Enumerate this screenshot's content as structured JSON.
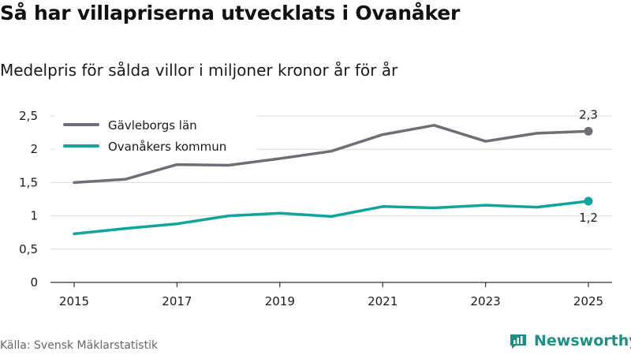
{
  "title": "Så har villapriserna utvecklats i Ovanåker",
  "subtitle": "Medelpris för sålda villor i miljoner kronor år för år",
  "source": "Källa: Svensk Mäklarstatistik",
  "brand": "Newsworthy",
  "colors": {
    "gavleborg": "#6f6e74",
    "ovanaker": "#0fa59a",
    "grid": "#d9d9d9",
    "axis": "#333333",
    "brand": "#1f8f84"
  },
  "chart_data": {
    "type": "line",
    "title": "Så har villapriserna utvecklats i Ovanåker",
    "subtitle": "Medelpris för sålda villor i miljoner kronor år för år",
    "x": [
      2015,
      2016,
      2017,
      2018,
      2019,
      2020,
      2021,
      2022,
      2023,
      2024,
      2025
    ],
    "x_ticks": [
      2015,
      2017,
      2019,
      2021,
      2023,
      2025
    ],
    "x_tick_labels": [
      "2015",
      "2017",
      "2019",
      "2021",
      "2023",
      "2025"
    ],
    "xlim": [
      2015,
      2025
    ],
    "ylim": [
      0,
      2.5
    ],
    "y_ticks": [
      0,
      0.5,
      1,
      1.5,
      2,
      2.5
    ],
    "y_tick_labels": [
      "0",
      "0,5",
      "1",
      "1,5",
      "2",
      "2,5"
    ],
    "grid": true,
    "legend_position": "top-left",
    "series": [
      {
        "name": "Gävleborgs län",
        "color_key": "gavleborg",
        "values": [
          1.5,
          1.55,
          1.77,
          1.76,
          1.86,
          1.97,
          2.22,
          2.36,
          2.12,
          2.24,
          2.27
        ],
        "end_label": "2,3"
      },
      {
        "name": "Ovanåkers kommun",
        "color_key": "ovanaker",
        "values": [
          0.73,
          0.81,
          0.88,
          1.0,
          1.04,
          0.99,
          1.14,
          1.12,
          1.16,
          1.13,
          1.22
        ],
        "end_label": "1,2"
      }
    ]
  }
}
